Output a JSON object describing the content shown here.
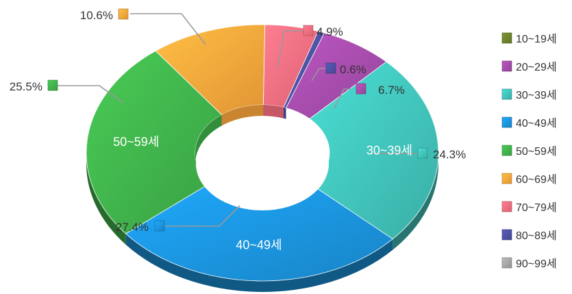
{
  "chart_data": {
    "type": "pie",
    "categories": [
      "10~19세",
      "20~29세",
      "30~39세",
      "40~49세",
      "50~59세",
      "60~69세",
      "70~79세",
      "80~89세",
      "90~99세"
    ],
    "values": [
      0.0,
      6.7,
      24.3,
      27.4,
      25.5,
      10.6,
      4.9,
      0.6,
      0.0
    ],
    "labels": [
      "",
      "6.7%",
      "24.3%",
      "27.4%",
      "25.5%",
      "10.6%",
      "4.9%",
      "0.6%",
      ""
    ],
    "inner_labels": [
      "",
      "",
      "30~39세",
      "40~49세",
      "50~59세",
      "",
      "",
      "",
      ""
    ],
    "colors": [
      "#6b7f2c",
      "#a04aa6",
      "#3fbdb4",
      "#1a8fd6",
      "#3ead49",
      "#f6a23a",
      "#ef6b7c",
      "#4a4f9e",
      "#a0a0a0"
    ],
    "legend_position": "right",
    "style": "3d-donut"
  }
}
